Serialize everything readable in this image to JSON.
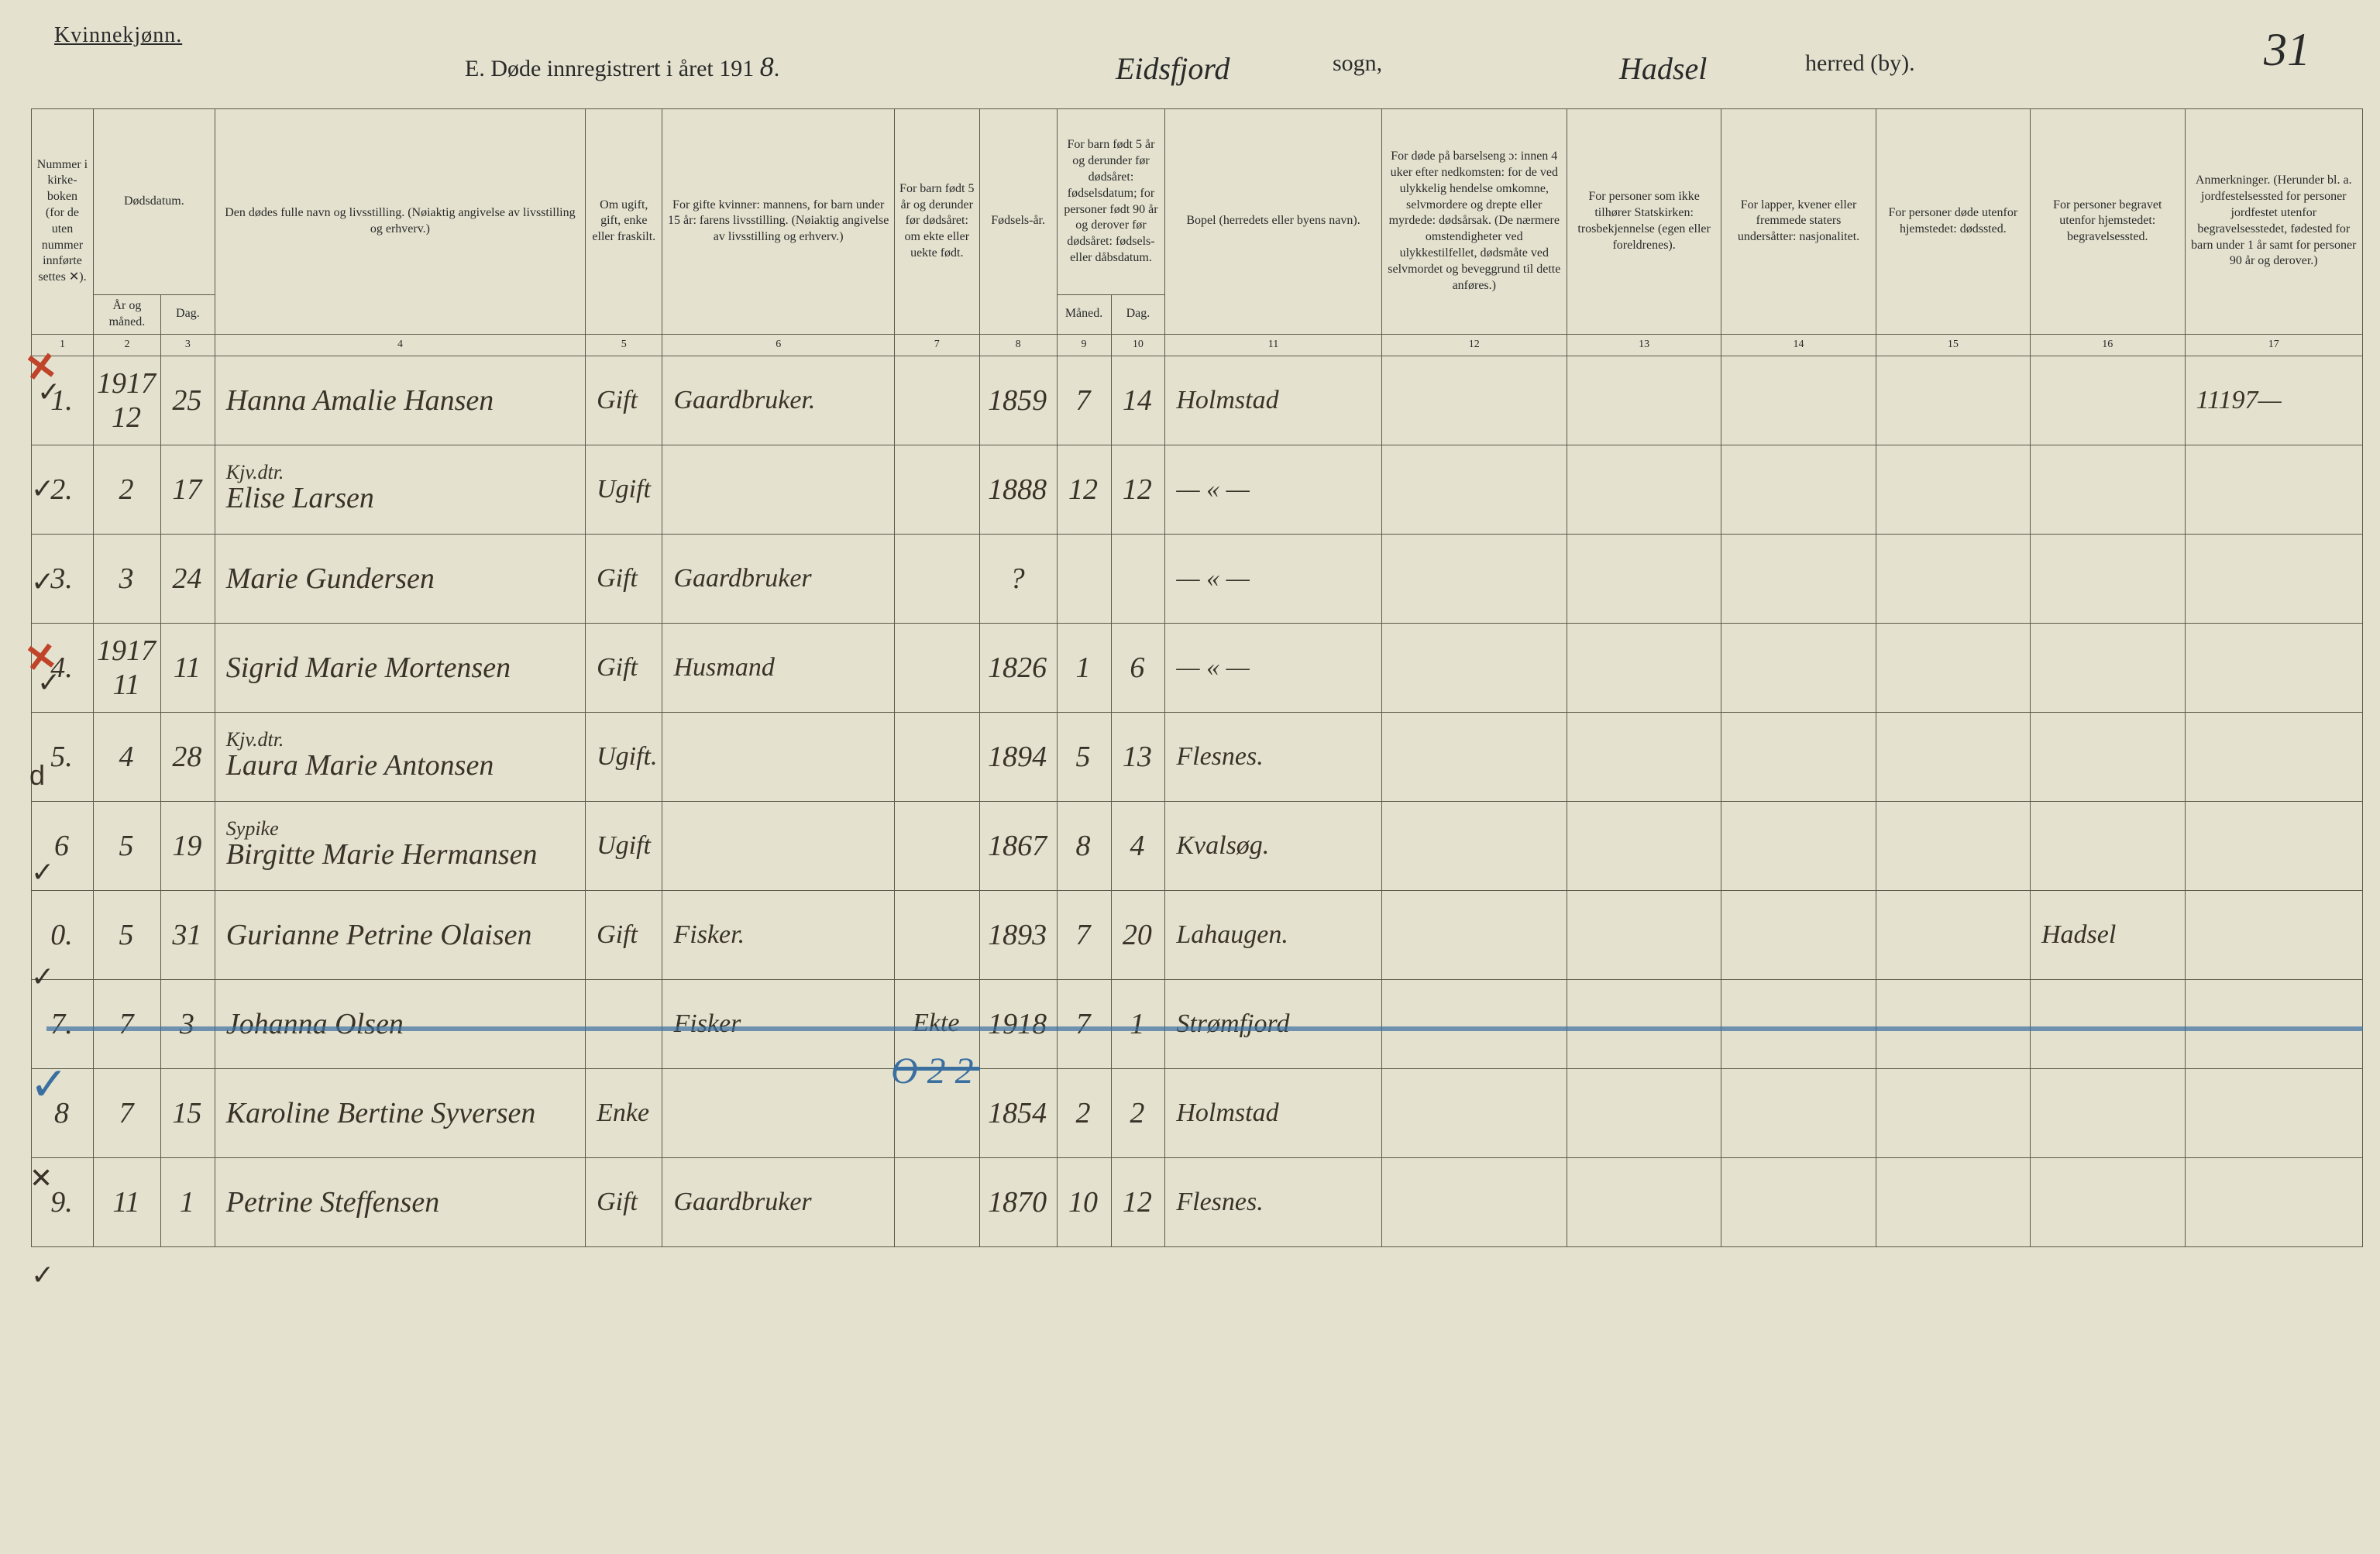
{
  "header": {
    "gender_label": "Kvinnekjønn.",
    "title_prefix": "E. Døde innregistrert i året 191",
    "year_suffix": "8",
    "sogn_hand": "Eidsfjord",
    "sogn_label": "sogn,",
    "herred_hand": "Hadsel",
    "herred_label": "herred (by).",
    "page_number": "31"
  },
  "columns": {
    "c1": "Nummer i kirke-boken (for de uten nummer innførte settes ✕).",
    "c2": "Dødsdatum.",
    "c2a": "År og måned.",
    "c2b": "Dag.",
    "c4": "Den dødes fulle navn og livsstilling. (Nøiaktig angivelse av livsstilling og erhverv.)",
    "c5": "Om ugift, gift, enke eller fraskilt.",
    "c6": "For gifte kvinner: mannens, for barn under 15 år: farens livsstilling. (Nøiaktig angivelse av livsstilling og erhverv.)",
    "c7": "For barn født 5 år og derunder før dødsåret: om ekte eller uekte født.",
    "c8": "Fødsels-år.",
    "c9_10": "For barn født 5 år og derunder før dødsåret: fødselsdatum; for personer født 90 år og derover før dødsåret: fødsels- eller dåbsdatum.",
    "c9": "Måned.",
    "c10": "Dag.",
    "c11": "Bopel (herredets eller byens navn).",
    "c12": "For døde på barselseng ɔ: innen 4 uker efter nedkomsten: for de ved ulykkelig hendelse omkomne, selvmordere og drepte eller myrdede: dødsårsak. (De nærmere omstendigheter ved ulykkestilfellet, dødsmåte ved selvmordet og beveggrund til dette anføres.)",
    "c13": "For personer som ikke tilhører Statskirken: trosbekjennelse (egen eller foreldrenes).",
    "c14": "For lapper, kvener eller fremmede staters undersåtter: nasjonalitet.",
    "c15": "For personer døde utenfor hjemstedet: dødssted.",
    "c16": "For personer begravet utenfor hjemstedet: begravelsessted.",
    "c17": "Anmerkninger. (Herunder bl. a. jordfestelsessted for personer jordfestet utenfor begravelsesstedet, fødested for barn under 1 år samt for personer 90 år og derover.)"
  },
  "colnums": [
    "1",
    "2",
    "3",
    "4",
    "5",
    "6",
    "7",
    "8",
    "9",
    "10",
    "11",
    "12",
    "13",
    "14",
    "15",
    "16",
    "17"
  ],
  "rows": [
    {
      "num": "1.",
      "ar_mnd": "1917\n12",
      "dag": "25",
      "navn": "Hanna Amalie Hansen",
      "status": "Gift",
      "mann": "Gaardbruker.",
      "barn5": "",
      "far": "1859",
      "mnd": "7",
      "dag2": "14",
      "bopel": "Holmstad",
      "c12": "",
      "c13": "",
      "c14": "",
      "c15": "",
      "c16": "",
      "anm": "11197—",
      "navn_sub": ""
    },
    {
      "num": "2.",
      "ar_mnd": "2",
      "dag": "17",
      "navn": "Elise Larsen",
      "status": "Ugift",
      "mann": "",
      "barn5": "",
      "far": "1888",
      "mnd": "12",
      "dag2": "12",
      "bopel": "— « —",
      "c12": "",
      "c13": "",
      "c14": "",
      "c15": "",
      "c16": "",
      "anm": "",
      "navn_sub": "Kjv.dtr."
    },
    {
      "num": "3.",
      "ar_mnd": "3",
      "dag": "24",
      "navn": "Marie Gundersen",
      "status": "Gift",
      "mann": "Gaardbruker",
      "barn5": "",
      "far": "?",
      "mnd": "",
      "dag2": "",
      "bopel": "— « —",
      "c12": "",
      "c13": "",
      "c14": "",
      "c15": "",
      "c16": "",
      "anm": "",
      "navn_sub": ""
    },
    {
      "num": "4.",
      "ar_mnd": "1917\n11",
      "dag": "11",
      "navn": "Sigrid Marie Mortensen",
      "status": "Gift",
      "mann": "Husmand",
      "barn5": "",
      "far": "1826",
      "mnd": "1",
      "dag2": "6",
      "bopel": "— « —",
      "c12": "",
      "c13": "",
      "c14": "",
      "c15": "",
      "c16": "",
      "anm": "",
      "navn_sub": ""
    },
    {
      "num": "5.",
      "ar_mnd": "4",
      "dag": "28",
      "navn": "Laura Marie Antonsen",
      "status": "Ugift.",
      "mann": "",
      "barn5": "",
      "far": "1894",
      "mnd": "5",
      "dag2": "13",
      "bopel": "Flesnes.",
      "c12": "",
      "c13": "",
      "c14": "",
      "c15": "",
      "c16": "",
      "anm": "",
      "navn_sub": "Kjv.dtr."
    },
    {
      "num": "6",
      "ar_mnd": "5",
      "dag": "19",
      "navn": "Birgitte Marie Hermansen",
      "status": "Ugift",
      "mann": "",
      "barn5": "",
      "far": "1867",
      "mnd": "8",
      "dag2": "4",
      "bopel": "Kvalsøg.",
      "c12": "",
      "c13": "",
      "c14": "",
      "c15": "",
      "c16": "",
      "anm": "",
      "navn_sub": "Sypike"
    },
    {
      "num": "0.",
      "ar_mnd": "5",
      "dag": "31",
      "navn": "Gurianne Petrine Olaisen",
      "status": "Gift",
      "mann": "Fisker.",
      "barn5": "",
      "far": "1893",
      "mnd": "7",
      "dag2": "20",
      "bopel": "Lahaugen.",
      "c12": "",
      "c13": "",
      "c14": "",
      "c15": "",
      "c16": "Hadsel",
      "anm": "",
      "navn_sub": ""
    },
    {
      "num": "7.",
      "ar_mnd": "7",
      "dag": "3",
      "navn": "Johanna Olsen",
      "status": "",
      "mann": "Fisker",
      "barn5": "Ekte",
      "far": "1918",
      "mnd": "7",
      "dag2": "1",
      "bopel": "Strømfjord",
      "c12": "",
      "c13": "",
      "c14": "",
      "c15": "",
      "c16": "",
      "anm": "",
      "navn_sub": ""
    },
    {
      "num": "8",
      "ar_mnd": "7",
      "dag": "15",
      "navn": "Karoline Bertine Syversen",
      "status": "Enke",
      "mann": "",
      "barn5": "",
      "far": "1854",
      "mnd": "2",
      "dag2": "2",
      "bopel": "Holmstad",
      "c12": "",
      "c13": "",
      "c14": "",
      "c15": "",
      "c16": "",
      "anm": "",
      "navn_sub": ""
    },
    {
      "num": "9.",
      "ar_mnd": "11",
      "dag": "1",
      "navn": "Petrine Steffensen",
      "status": "Gift",
      "mann": "Gaardbruker",
      "barn5": "",
      "far": "1870",
      "mnd": "10",
      "dag2": "12",
      "bopel": "Flesnes.",
      "c12": "",
      "c13": "",
      "c14": "",
      "c15": "",
      "c16": "",
      "anm": "",
      "navn_sub": ""
    }
  ],
  "blue_annotation": "O 2 2",
  "style": {
    "background_color": "#e4e2cf",
    "border_color": "#5a5a4a",
    "hand_color": "#3a3228",
    "red_color": "#c0442a",
    "blue_color": "#3b6fa0",
    "print_font": "Georgia, Times New Roman, serif",
    "hand_font": "Brush Script MT, cursive",
    "header_fontsize_pt": 12,
    "hand_fontsize_pt": 28
  }
}
